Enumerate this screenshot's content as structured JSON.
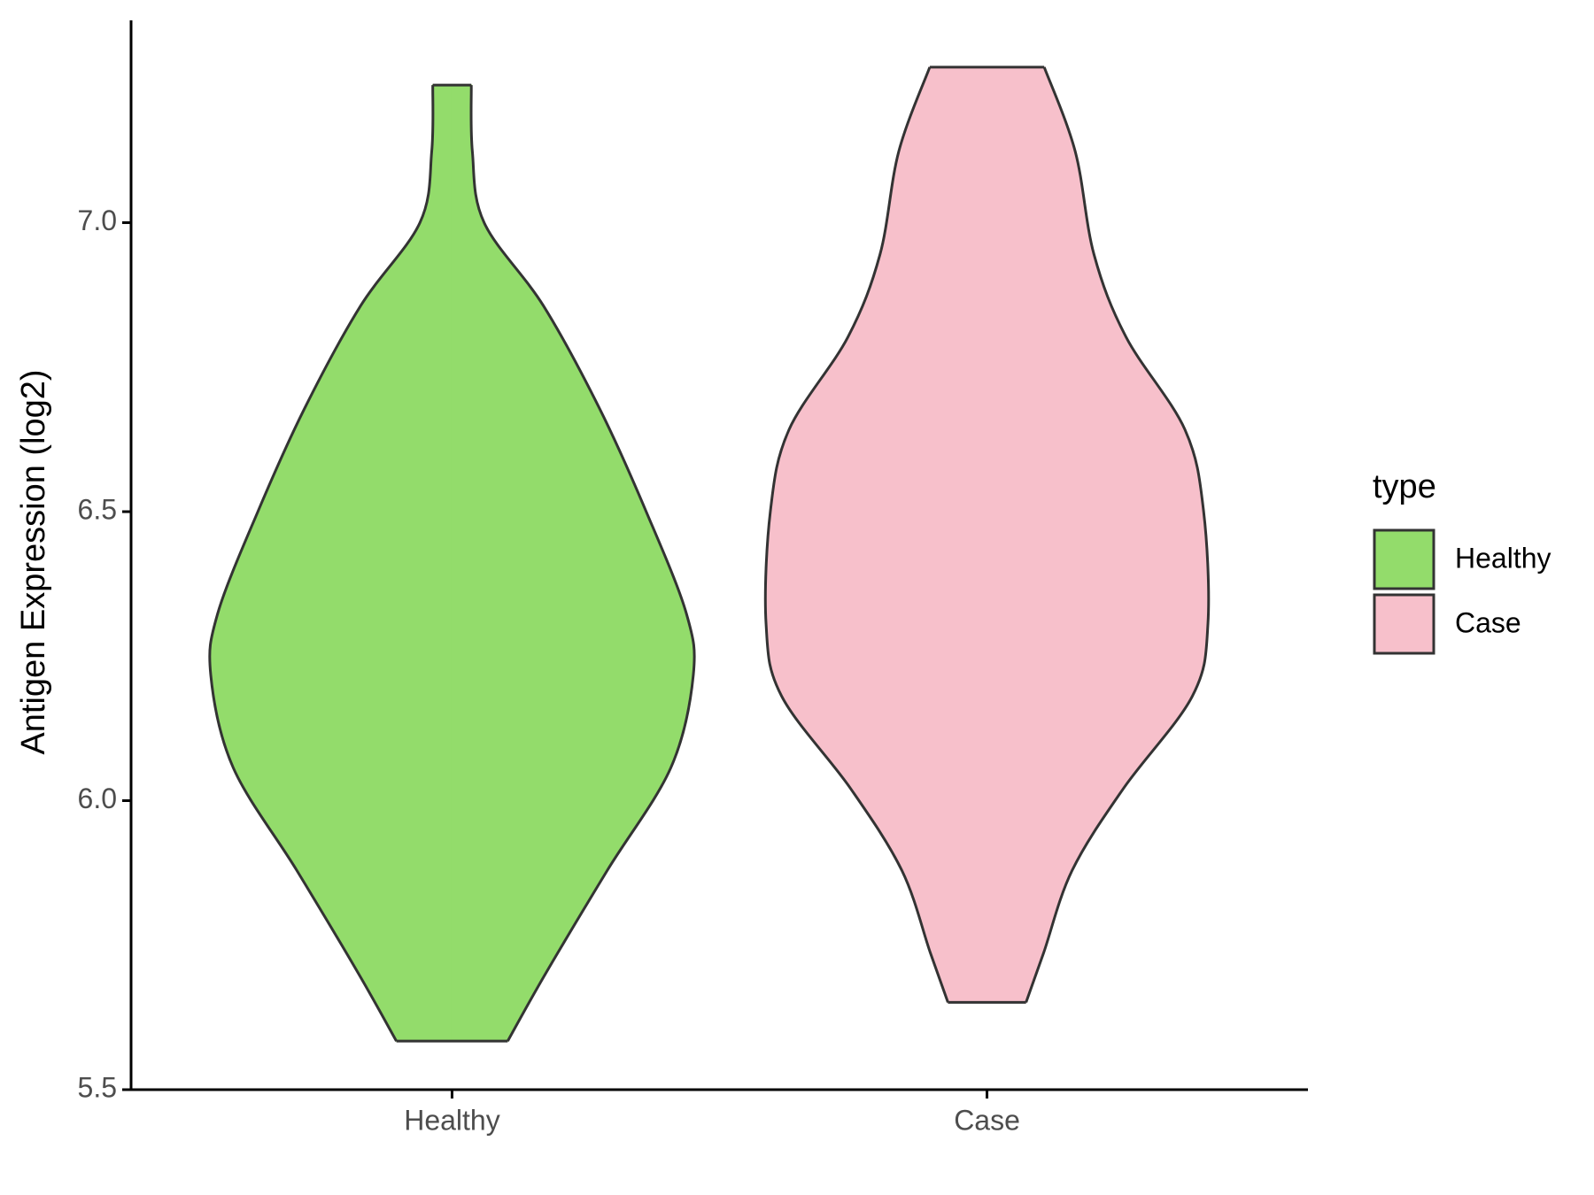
{
  "chart_data": {
    "type": "violin",
    "y_label": "Antigen Expression (log2)",
    "categories": [
      "Healthy",
      "Case"
    ],
    "ylim": [
      5.5,
      7.35
    ],
    "yticks": [
      {
        "value": 5.5,
        "label": "5.5"
      },
      {
        "value": 6,
        "label": "6.0"
      },
      {
        "value": 6.5,
        "label": "6.5"
      },
      {
        "value": 7,
        "label": "7.0"
      }
    ],
    "legend_title": "type",
    "series": [
      {
        "name": "Healthy",
        "color": "#93dc6b",
        "y": [
          7.238,
          7.123,
          7.0,
          6.856,
          6.678,
          6.5,
          6.324,
          6.217,
          6.057,
          5.879,
          5.701,
          5.584
        ],
        "width": [
          0.036,
          0.038,
          0.06,
          0.171,
          0.276,
          0.363,
          0.438,
          0.451,
          0.409,
          0.29,
          0.175,
          0.104
        ]
      },
      {
        "name": "Case",
        "color": "#f7c0cb",
        "y": [
          7.269,
          7.123,
          6.945,
          6.802,
          6.642,
          6.5,
          6.306,
          6.181,
          6.021,
          5.879,
          5.737,
          5.651
        ],
        "width": [
          0.107,
          0.165,
          0.2,
          0.26,
          0.37,
          0.405,
          0.413,
          0.384,
          0.255,
          0.159,
          0.106,
          0.073
        ]
      }
    ]
  }
}
